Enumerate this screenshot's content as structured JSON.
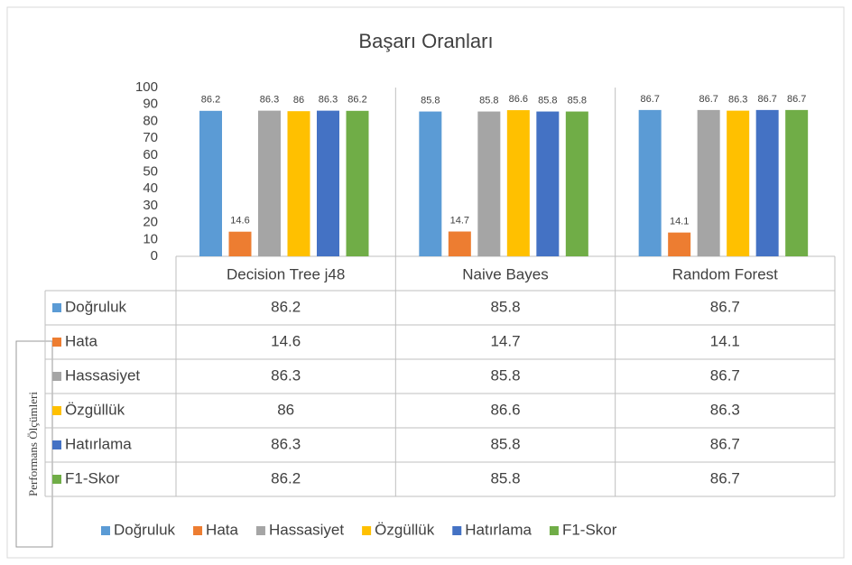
{
  "chart_data": {
    "type": "bar",
    "title": "Başarı Oranları",
    "categories": [
      "Decision Tree j48",
      "Naive Bayes",
      "Random Forest"
    ],
    "series": [
      {
        "name": "Doğruluk",
        "color": "#5b9bd5",
        "values": [
          86.2,
          85.8,
          86.7
        ]
      },
      {
        "name": "Hata",
        "color": "#ed7d31",
        "values": [
          14.6,
          14.7,
          14.1
        ]
      },
      {
        "name": "Hassasiyet",
        "color": "#a5a5a5",
        "values": [
          86.3,
          85.8,
          86.7
        ]
      },
      {
        "name": "Özgüllük",
        "color": "#ffc000",
        "values": [
          86,
          86.6,
          86.3
        ]
      },
      {
        "name": "Hatırlama",
        "color": "#4472c4",
        "values": [
          86.3,
          85.8,
          86.7
        ]
      },
      {
        "name": "F1-Skor",
        "color": "#70ad47",
        "values": [
          86.2,
          85.8,
          86.7
        ]
      }
    ],
    "ylim": [
      0,
      100
    ],
    "yticks": [
      0,
      10,
      20,
      30,
      40,
      50,
      60,
      70,
      80,
      90,
      100
    ],
    "grid": false,
    "legend": "bottom",
    "annotation": "Performans Ölçümleri"
  }
}
